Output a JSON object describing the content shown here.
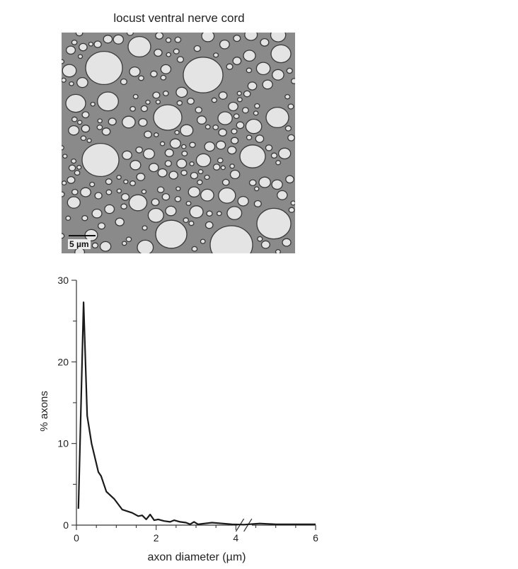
{
  "figure": {
    "title": "locust ventral nerve cord",
    "scale_label": "5 µm"
  },
  "chart_data": {
    "type": "line",
    "xlabel": "axon diameter (µm)",
    "ylabel": "% axons",
    "xlim": [
      0,
      6
    ],
    "ylim": [
      0,
      30
    ],
    "x_axis_break": [
      3.3,
      4.2
    ],
    "x_ticks": [
      "0",
      "2",
      "4",
      "6"
    ],
    "y_ticks": [
      "0",
      "10",
      "20",
      "30"
    ],
    "grid": false,
    "series": [
      {
        "values_x": [
          0.05,
          0.18,
          0.27,
          0.38,
          0.55,
          0.62,
          0.75,
          0.95,
          1.15,
          1.4,
          1.55,
          1.65,
          1.75,
          1.85,
          1.95,
          2.05,
          2.2,
          2.35,
          2.45,
          2.6,
          2.75,
          2.85,
          2.95,
          3.05,
          3.4,
          3.9,
          4.2,
          4.6,
          5.0,
          5.5,
          6.0
        ],
        "values_y": [
          2.0,
          27.3,
          13.4,
          10.0,
          6.5,
          6.0,
          4.1,
          3.2,
          1.9,
          1.5,
          1.1,
          1.2,
          0.7,
          1.3,
          0.6,
          0.7,
          0.5,
          0.4,
          0.6,
          0.4,
          0.3,
          0.1,
          0.4,
          0.1,
          0.3,
          0.1,
          0.05,
          0.2,
          0.1,
          0.1,
          0.1
        ]
      }
    ]
  }
}
